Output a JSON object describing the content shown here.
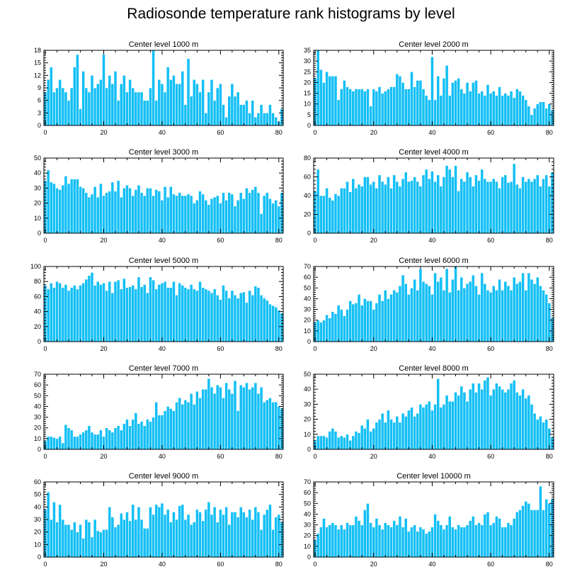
{
  "title": "Radiosonde temperature rank histograms by level",
  "colors": {
    "bar": "#14BFF5",
    "bar_edge": "#ffffff",
    "axis": "#000000"
  },
  "chart_data": [
    {
      "type": "bar",
      "title": "Center level 1000 m",
      "xlabel": "",
      "ylabel": "",
      "xlim": [
        -0.5,
        81.5
      ],
      "ylim": [
        0,
        18
      ],
      "xticks": [
        0,
        20,
        40,
        60,
        80
      ],
      "yticks": [
        0,
        3,
        6,
        9,
        12,
        15,
        18
      ],
      "values": [
        8,
        11,
        14,
        8,
        9,
        11,
        9,
        8,
        6,
        9,
        14,
        17,
        4,
        13,
        9,
        8,
        12,
        9,
        10,
        11,
        17,
        9,
        12,
        10,
        13,
        6,
        10,
        12,
        8,
        11,
        9,
        8,
        8,
        8,
        6,
        6,
        9,
        18,
        6,
        11,
        10,
        8,
        14,
        11,
        12,
        10,
        10,
        13,
        5,
        16,
        7,
        11,
        10,
        8,
        11,
        3,
        8,
        11,
        6,
        9,
        10,
        5,
        2,
        7,
        10,
        7,
        8,
        5,
        5,
        6,
        3,
        6,
        2,
        3,
        5,
        3,
        3,
        5,
        3,
        2,
        1,
        4
      ],
      "grid": false
    },
    {
      "type": "bar",
      "title": "Center level 2000 m",
      "xlabel": "",
      "ylabel": "",
      "xlim": [
        -0.5,
        81.5
      ],
      "ylim": [
        0,
        35
      ],
      "xticks": [
        0,
        20,
        40,
        60,
        80
      ],
      "yticks": [
        0,
        5,
        10,
        15,
        20,
        25,
        30,
        35
      ],
      "values": [
        22,
        35,
        26,
        20,
        25,
        23,
        23,
        23,
        12,
        17,
        21,
        18,
        17,
        16,
        17,
        17,
        17,
        16,
        17,
        9,
        17,
        16,
        18,
        15,
        16,
        17,
        18,
        18,
        24,
        23,
        20,
        17,
        17,
        25,
        18,
        21,
        21,
        17,
        14,
        12,
        32,
        12,
        23,
        14,
        22,
        28,
        14,
        20,
        21,
        22,
        17,
        15,
        20,
        16,
        20,
        21,
        15,
        16,
        14,
        19,
        15,
        16,
        14,
        18,
        14,
        15,
        14,
        16,
        13,
        17,
        16,
        14,
        12,
        9,
        5,
        8,
        10,
        11,
        11,
        8,
        10,
        7
      ],
      "grid": false
    },
    {
      "type": "bar",
      "title": "Center level 3000 m",
      "xlabel": "",
      "ylabel": "",
      "xlim": [
        -0.5,
        81.5
      ],
      "ylim": [
        0,
        50
      ],
      "xticks": [
        0,
        20,
        40,
        60,
        80
      ],
      "yticks": [
        0,
        10,
        20,
        30,
        40,
        50
      ],
      "values": [
        35,
        42,
        34,
        33,
        30,
        29,
        32,
        38,
        33,
        36,
        36,
        36,
        31,
        30,
        27,
        24,
        26,
        31,
        24,
        33,
        25,
        27,
        28,
        34,
        28,
        35,
        24,
        30,
        32,
        30,
        25,
        29,
        32,
        27,
        25,
        30,
        30,
        25,
        29,
        28,
        22,
        31,
        24,
        31,
        26,
        25,
        27,
        25,
        25,
        26,
        25,
        20,
        22,
        28,
        26,
        22,
        19,
        23,
        24,
        25,
        20,
        27,
        22,
        27,
        26,
        18,
        22,
        27,
        23,
        30,
        27,
        29,
        31,
        27,
        13,
        25,
        27,
        23,
        20,
        22,
        18,
        27
      ],
      "grid": false
    },
    {
      "type": "bar",
      "title": "Center level 4000 m",
      "xlabel": "",
      "ylabel": "",
      "xlim": [
        -0.5,
        81.5
      ],
      "ylim": [
        0,
        80
      ],
      "xticks": [
        0,
        20,
        40,
        60,
        80
      ],
      "yticks": [
        0,
        20,
        40,
        60,
        80
      ],
      "values": [
        45,
        68,
        40,
        40,
        48,
        38,
        35,
        42,
        40,
        48,
        48,
        55,
        44,
        58,
        48,
        52,
        50,
        60,
        60,
        52,
        55,
        48,
        62,
        55,
        52,
        60,
        48,
        62,
        55,
        50,
        58,
        65,
        55,
        56,
        60,
        55,
        50,
        62,
        68,
        58,
        66,
        55,
        62,
        50,
        60,
        72,
        68,
        60,
        72,
        45,
        58,
        55,
        65,
        60,
        50,
        62,
        56,
        68,
        58,
        55,
        55,
        58,
        55,
        48,
        60,
        62,
        54,
        55,
        74,
        52,
        48,
        60,
        55,
        58,
        55,
        58,
        62,
        50,
        58,
        62,
        50,
        65
      ],
      "grid": false
    },
    {
      "type": "bar",
      "title": "Center level 5000 m",
      "xlabel": "",
      "ylabel": "",
      "xlim": [
        -0.5,
        81.5
      ],
      "ylim": [
        0,
        100
      ],
      "xticks": [
        0,
        20,
        40,
        60,
        80
      ],
      "yticks": [
        0,
        20,
        40,
        60,
        80,
        100
      ],
      "values": [
        75,
        70,
        78,
        72,
        80,
        78,
        72,
        76,
        68,
        72,
        75,
        70,
        75,
        78,
        83,
        88,
        92,
        75,
        80,
        76,
        78,
        68,
        80,
        65,
        80,
        82,
        70,
        84,
        72,
        73,
        75,
        70,
        86,
        73,
        76,
        65,
        86,
        82,
        70,
        76,
        78,
        80,
        72,
        72,
        80,
        62,
        78,
        75,
        72,
        70,
        76,
        70,
        68,
        80,
        72,
        70,
        68,
        65,
        70,
        62,
        56,
        75,
        68,
        58,
        68,
        62,
        58,
        65,
        66,
        52,
        68,
        62,
        74,
        72,
        62,
        58,
        55,
        50,
        48,
        46,
        42,
        38
      ],
      "grid": false
    },
    {
      "type": "bar",
      "title": "Center level 6000 m",
      "xlabel": "",
      "ylabel": "",
      "xlim": [
        -0.5,
        81.5
      ],
      "ylim": [
        0,
        70
      ],
      "xticks": [
        0,
        20,
        40,
        60,
        80
      ],
      "yticks": [
        0,
        10,
        20,
        30,
        40,
        50,
        60,
        70
      ],
      "values": [
        18,
        20,
        18,
        20,
        25,
        22,
        28,
        26,
        34,
        30,
        24,
        30,
        38,
        35,
        36,
        44,
        34,
        40,
        38,
        38,
        30,
        36,
        44,
        38,
        48,
        40,
        44,
        48,
        46,
        52,
        62,
        54,
        44,
        50,
        58,
        48,
        68,
        56,
        54,
        52,
        44,
        64,
        56,
        60,
        48,
        68,
        46,
        58,
        70,
        48,
        60,
        50,
        54,
        56,
        62,
        52,
        44,
        64,
        54,
        48,
        46,
        52,
        48,
        58,
        48,
        56,
        52,
        48,
        60,
        54,
        56,
        64,
        48,
        64,
        58,
        54,
        60,
        52,
        48,
        44,
        36,
        22
      ],
      "grid": false
    },
    {
      "type": "bar",
      "title": "Center level 7000 m",
      "xlabel": "",
      "ylabel": "",
      "xlim": [
        -0.5,
        81.5
      ],
      "ylim": [
        0,
        70
      ],
      "xticks": [
        0,
        20,
        40,
        60,
        80
      ],
      "yticks": [
        0,
        10,
        20,
        30,
        40,
        50,
        60,
        70
      ],
      "values": [
        8,
        12,
        12,
        11,
        10,
        12,
        6,
        23,
        20,
        18,
        12,
        12,
        14,
        16,
        18,
        22,
        16,
        14,
        14,
        18,
        12,
        20,
        18,
        16,
        20,
        22,
        18,
        24,
        28,
        22,
        28,
        34,
        24,
        26,
        22,
        28,
        26,
        30,
        44,
        32,
        32,
        36,
        40,
        38,
        36,
        44,
        48,
        42,
        46,
        44,
        52,
        42,
        54,
        48,
        56,
        56,
        66,
        58,
        52,
        60,
        58,
        48,
        62,
        56,
        52,
        64,
        36,
        60,
        58,
        62,
        56,
        58,
        62,
        52,
        58,
        44,
        46,
        48,
        44,
        44,
        40,
        38
      ],
      "grid": false
    },
    {
      "type": "bar",
      "title": "Center level 8000 m",
      "xlabel": "",
      "ylabel": "",
      "xlim": [
        -0.5,
        81.5
      ],
      "ylim": [
        0,
        50
      ],
      "xticks": [
        0,
        20,
        40,
        60,
        80
      ],
      "yticks": [
        0,
        10,
        20,
        30,
        40,
        50
      ],
      "values": [
        6,
        9,
        9,
        9,
        8,
        12,
        14,
        12,
        8,
        9,
        8,
        10,
        6,
        9,
        12,
        11,
        16,
        14,
        20,
        12,
        14,
        18,
        20,
        24,
        18,
        26,
        20,
        18,
        22,
        18,
        24,
        22,
        26,
        28,
        22,
        24,
        30,
        28,
        30,
        32,
        26,
        30,
        47,
        28,
        30,
        36,
        32,
        32,
        38,
        36,
        42,
        38,
        32,
        40,
        44,
        38,
        44,
        40,
        46,
        48,
        36,
        40,
        44,
        42,
        40,
        38,
        40,
        44,
        46,
        38,
        36,
        40,
        34,
        36,
        30,
        24,
        20,
        22,
        18,
        20,
        14,
        8
      ],
      "grid": false
    },
    {
      "type": "bar",
      "title": "Center level 9000 m",
      "xlabel": "",
      "ylabel": "",
      "xlim": [
        -0.5,
        81.5
      ],
      "ylim": [
        0,
        60
      ],
      "xticks": [
        0,
        20,
        40,
        60,
        80
      ],
      "yticks": [
        0,
        10,
        20,
        30,
        40,
        50,
        60
      ],
      "values": [
        38,
        52,
        30,
        44,
        28,
        42,
        30,
        26,
        26,
        22,
        28,
        20,
        26,
        15,
        30,
        28,
        16,
        30,
        21,
        20,
        22,
        22,
        40,
        32,
        24,
        26,
        35,
        30,
        36,
        29,
        42,
        30,
        40,
        30,
        23,
        23,
        40,
        34,
        42,
        40,
        43,
        34,
        38,
        28,
        36,
        30,
        41,
        42,
        30,
        34,
        26,
        28,
        38,
        36,
        29,
        38,
        44,
        34,
        40,
        28,
        38,
        34,
        40,
        26,
        36,
        36,
        32,
        40,
        36,
        32,
        38,
        30,
        40,
        36,
        22,
        34,
        38,
        42,
        22,
        32,
        34,
        28
      ],
      "grid": false
    },
    {
      "type": "bar",
      "title": "Center level 10000 m",
      "xlabel": "",
      "ylabel": "",
      "xlim": [
        -0.5,
        81.5
      ],
      "ylim": [
        0,
        70
      ],
      "xticks": [
        0,
        20,
        40,
        60,
        80
      ],
      "yticks": [
        0,
        10,
        20,
        30,
        40,
        50,
        60,
        70
      ],
      "values": [
        16,
        22,
        28,
        36,
        28,
        30,
        32,
        30,
        26,
        30,
        26,
        32,
        30,
        30,
        38,
        34,
        30,
        44,
        50,
        32,
        28,
        36,
        30,
        26,
        32,
        30,
        28,
        34,
        30,
        38,
        28,
        36,
        24,
        28,
        30,
        24,
        28,
        26,
        22,
        24,
        28,
        40,
        34,
        30,
        26,
        30,
        38,
        28,
        26,
        30,
        28,
        28,
        30,
        34,
        38,
        30,
        32,
        30,
        40,
        42,
        30,
        32,
        38,
        36,
        28,
        28,
        32,
        30,
        36,
        42,
        44,
        48,
        52,
        50,
        44,
        44,
        44,
        66,
        44,
        54,
        50,
        54
      ],
      "grid": false
    }
  ]
}
